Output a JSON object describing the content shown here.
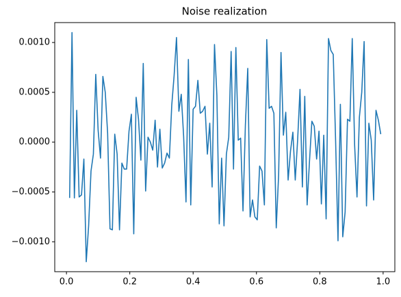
{
  "chart_data": {
    "type": "line",
    "title": "Noise realization",
    "x": [
      0.01,
      0.0175,
      0.025,
      0.0325,
      0.04,
      0.0475,
      0.055,
      0.0625,
      0.07,
      0.0775,
      0.085,
      0.0925,
      0.1,
      0.1075,
      0.115,
      0.1225,
      0.13,
      0.1375,
      0.145,
      0.1525,
      0.16,
      0.1675,
      0.175,
      0.1825,
      0.19,
      0.1975,
      0.205,
      0.2125,
      0.22,
      0.2275,
      0.235,
      0.2425,
      0.25,
      0.2575,
      0.265,
      0.2725,
      0.28,
      0.2875,
      0.295,
      0.3025,
      0.31,
      0.3175,
      0.325,
      0.3325,
      0.34,
      0.3475,
      0.355,
      0.3625,
      0.37,
      0.3775,
      0.385,
      0.3925,
      0.4,
      0.4075,
      0.415,
      0.4225,
      0.43,
      0.4375,
      0.445,
      0.4525,
      0.46,
      0.4675,
      0.475,
      0.4825,
      0.49,
      0.4975,
      0.505,
      0.5125,
      0.52,
      0.5275,
      0.535,
      0.5425,
      0.55,
      0.5575,
      0.565,
      0.5725,
      0.58,
      0.5875,
      0.595,
      0.6025,
      0.61,
      0.6175,
      0.625,
      0.6325,
      0.64,
      0.6475,
      0.655,
      0.6625,
      0.67,
      0.6775,
      0.685,
      0.6925,
      0.7,
      0.7075,
      0.715,
      0.7225,
      0.73,
      0.7375,
      0.745,
      0.7525,
      0.76,
      0.7675,
      0.775,
      0.7825,
      0.79,
      0.7975,
      0.805,
      0.8125,
      0.82,
      0.8275,
      0.835,
      0.8425,
      0.85,
      0.8575,
      0.865,
      0.8725,
      0.88,
      0.8875,
      0.895,
      0.9025,
      0.91,
      0.9175,
      0.925,
      0.9325,
      0.94,
      0.9475,
      0.955,
      0.9625,
      0.97,
      0.9775,
      0.985,
      0.9925
    ],
    "series": [
      {
        "color": "#1f77b4",
        "values": [
          -0.00056,
          0.0011,
          -0.00056,
          0.00032,
          -0.00055,
          -0.00053,
          -0.00017,
          -0.0012,
          -0.00084,
          -0.00029,
          -0.00012,
          0.00068,
          0.00012,
          -0.00016,
          0.00066,
          0.0005,
          9e-05,
          -0.00087,
          -0.00088,
          8e-05,
          -0.00012,
          -0.00088,
          -0.00021,
          -0.00027,
          -0.00027,
          0.00011,
          0.00028,
          -0.00092,
          0.00045,
          0.00023,
          -0.00018,
          0.00079,
          -0.00049,
          5e-05,
          0,
          -8e-05,
          0.00022,
          -0.00025,
          0.00013,
          -0.00026,
          -0.00021,
          -0.00011,
          -0.00016,
          0.00037,
          0.00067,
          0.00105,
          0.00031,
          0.00048,
          6e-05,
          -0.0006,
          0.00083,
          -0.00063,
          0.00033,
          0.00036,
          0.00062,
          0.00029,
          0.00031,
          0.00036,
          -0.00012,
          0.00019,
          -0.00045,
          0.00098,
          0.00047,
          -0.00082,
          -0.00016,
          -0.00084,
          -0.00012,
          5e-05,
          0.00091,
          -0.00027,
          0.00095,
          2e-05,
          4e-05,
          -0.00069,
          0.00017,
          0.00074,
          -0.00075,
          -0.00058,
          -0.00075,
          -0.00078,
          -0.00024,
          -0.00029,
          -0.00063,
          0.00103,
          0.00034,
          0.00036,
          0.00029,
          -0.00086,
          -0.00033,
          0.0009,
          7e-05,
          0.0003,
          -0.00038,
          -9e-05,
          0.0001,
          -0.00038,
          2e-05,
          0.00053,
          -0.00045,
          0.00046,
          -0.00063,
          -0.00019,
          0.00021,
          0.00016,
          -0.00017,
          0.00011,
          -0.00062,
          7e-05,
          -0.00077,
          0.00104,
          0.00092,
          0.00088,
          1e-05,
          -0.00099,
          0.00038,
          -0.00095,
          -0.0007,
          0.00023,
          0.00021,
          0.00104,
          -3e-05,
          -0.00055,
          0.00025,
          0.0005,
          0.00101,
          -0.00064,
          0.00019,
          2e-05,
          -0.00058,
          0.00032,
          0.00022,
          8e-05
        ]
      }
    ],
    "xlim": [
      -0.037,
      1.037
    ],
    "xticks": [
      {
        "value": 0,
        "label": "0.0"
      },
      {
        "value": 0.2,
        "label": "0.2"
      },
      {
        "value": 0.4,
        "label": "0.4"
      },
      {
        "value": 0.6,
        "label": "0.6"
      },
      {
        "value": 0.8,
        "label": "0.8"
      },
      {
        "value": 1,
        "label": "1.0"
      }
    ],
    "ylim": [
      -0.0013,
      0.0012
    ],
    "yticks": [
      {
        "value": -0.001,
        "label": "−0.0010"
      },
      {
        "value": -0.0005,
        "label": "−0.0005"
      },
      {
        "value": 0,
        "label": "0.0000"
      },
      {
        "value": 0.0005,
        "label": "0.0005"
      },
      {
        "value": 0.001,
        "label": "0.0010"
      }
    ],
    "grid": false
  }
}
